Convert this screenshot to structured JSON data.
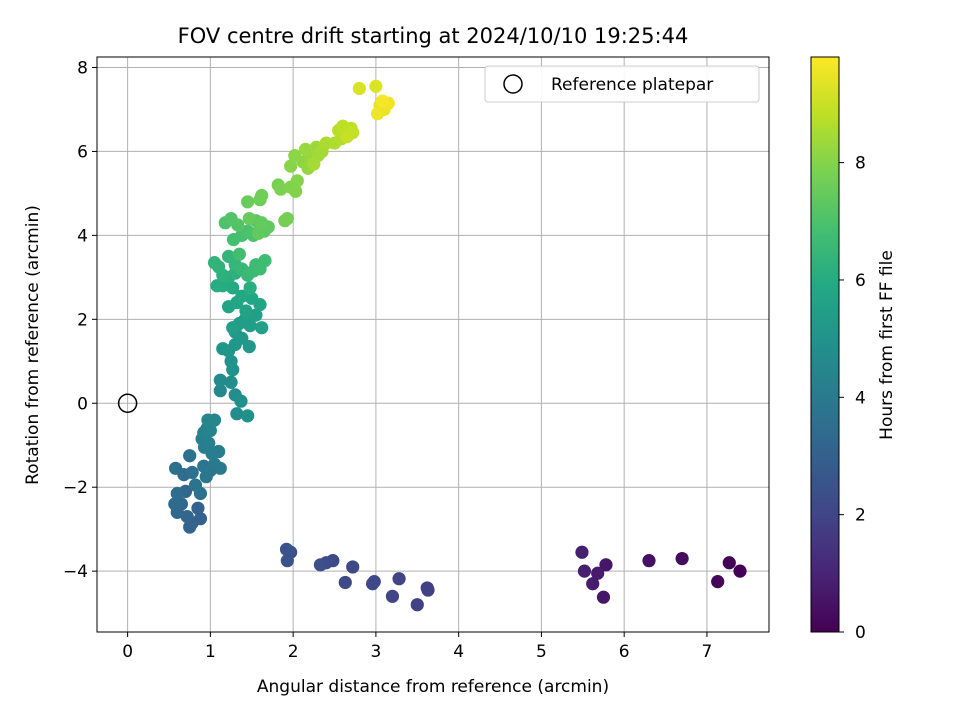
{
  "chart_data": {
    "type": "scatter",
    "title": "FOV centre drift starting at 2024/10/10 19:25:44",
    "xlabel": "Angular distance from reference (arcmin)",
    "ylabel": "Rotation from reference (arcmin)",
    "xlim": [
      -0.37,
      7.75
    ],
    "ylim": [
      -5.45,
      8.25
    ],
    "xticks": [
      0,
      1,
      2,
      3,
      4,
      5,
      6,
      7
    ],
    "yticks": [
      -4,
      -2,
      0,
      2,
      4,
      6,
      8
    ],
    "grid": true,
    "legend": {
      "location": "top-right",
      "entries": [
        "Reference platepar"
      ]
    },
    "reference_point": {
      "x": 0,
      "y": 0,
      "label": "Reference platepar",
      "marker": "open-circle"
    },
    "colorbar": {
      "label": "Hours from first FF file",
      "colormap": "viridis",
      "range": [
        0,
        9.8
      ],
      "ticks": [
        0,
        2,
        4,
        6,
        8
      ]
    },
    "series": [
      {
        "points": [
          [
            7.4,
            -4.0,
            0.05
          ],
          [
            7.27,
            -3.8,
            0.1
          ],
          [
            7.13,
            -4.25,
            0.15
          ],
          [
            6.7,
            -3.7,
            0.3
          ],
          [
            6.3,
            -3.75,
            0.45
          ],
          [
            5.78,
            -3.85,
            0.6
          ],
          [
            5.75,
            -4.62,
            0.65
          ],
          [
            5.68,
            -4.05,
            0.7
          ],
          [
            5.62,
            -4.3,
            0.75
          ],
          [
            5.52,
            -4.0,
            0.8
          ],
          [
            5.49,
            -3.55,
            0.85
          ],
          [
            3.63,
            -4.45,
            1.8
          ],
          [
            3.62,
            -4.4,
            1.85
          ],
          [
            3.5,
            -4.8,
            1.9
          ],
          [
            3.28,
            -4.18,
            1.95
          ],
          [
            3.2,
            -4.6,
            2.0
          ],
          [
            2.98,
            -4.25,
            2.05
          ],
          [
            2.96,
            -4.3,
            2.1
          ],
          [
            2.72,
            -3.9,
            2.15
          ],
          [
            2.63,
            -4.27,
            2.2
          ],
          [
            2.48,
            -3.75,
            2.25
          ],
          [
            2.4,
            -3.8,
            2.3
          ],
          [
            2.33,
            -3.85,
            2.35
          ],
          [
            1.97,
            -3.55,
            2.4
          ],
          [
            1.93,
            -3.75,
            2.45
          ],
          [
            1.92,
            -3.48,
            2.5
          ],
          [
            0.88,
            -2.75,
            3.0
          ],
          [
            0.85,
            -2.5,
            3.05
          ],
          [
            0.78,
            -2.85,
            3.1
          ],
          [
            0.75,
            -2.95,
            3.15
          ],
          [
            0.72,
            -2.7,
            3.2
          ],
          [
            0.7,
            -2.1,
            3.25
          ],
          [
            0.65,
            -2.4,
            3.3
          ],
          [
            0.6,
            -2.6,
            3.35
          ],
          [
            0.57,
            -2.4,
            3.4
          ],
          [
            0.6,
            -2.15,
            3.45
          ],
          [
            0.68,
            -1.7,
            3.5
          ],
          [
            0.58,
            -1.55,
            3.55
          ],
          [
            0.78,
            -1.65,
            3.6
          ],
          [
            0.75,
            -1.25,
            3.65
          ],
          [
            0.88,
            -2.15,
            3.7
          ],
          [
            0.82,
            -1.95,
            3.75
          ],
          [
            0.92,
            -1.5,
            3.8
          ],
          [
            0.95,
            -1.75,
            3.85
          ],
          [
            1.0,
            -1.6,
            3.9
          ],
          [
            1.05,
            -1.45,
            3.95
          ],
          [
            1.12,
            -1.55,
            4.0
          ],
          [
            1.1,
            -1.15,
            4.05
          ],
          [
            1.02,
            -1.2,
            4.1
          ],
          [
            0.93,
            -1.05,
            4.15
          ],
          [
            0.9,
            -0.85,
            4.2
          ],
          [
            0.98,
            -0.95,
            4.25
          ],
          [
            0.92,
            -0.7,
            4.3
          ],
          [
            0.96,
            -0.6,
            4.35
          ],
          [
            1.0,
            -0.65,
            4.4
          ],
          [
            0.97,
            -0.4,
            4.45
          ],
          [
            1.05,
            -0.4,
            4.5
          ],
          [
            1.12,
            0.3,
            4.6
          ],
          [
            1.12,
            0.55,
            4.65
          ],
          [
            1.25,
            0.5,
            4.7
          ],
          [
            1.3,
            0.2,
            4.75
          ],
          [
            1.32,
            -0.25,
            4.8
          ],
          [
            1.37,
            0.05,
            4.85
          ],
          [
            1.45,
            -0.3,
            4.9
          ],
          [
            1.27,
            0.8,
            4.95
          ],
          [
            1.25,
            1.0,
            5.0
          ],
          [
            1.15,
            1.3,
            5.05
          ],
          [
            1.22,
            1.25,
            5.1
          ],
          [
            1.3,
            1.4,
            5.15
          ],
          [
            1.38,
            1.55,
            5.2
          ],
          [
            1.47,
            1.35,
            5.25
          ],
          [
            1.3,
            1.7,
            5.3
          ],
          [
            1.35,
            1.9,
            5.35
          ],
          [
            1.42,
            2.0,
            5.4
          ],
          [
            1.48,
            1.85,
            5.45
          ],
          [
            1.27,
            1.8,
            5.5
          ],
          [
            1.55,
            2.1,
            5.55
          ],
          [
            1.62,
            1.8,
            5.6
          ],
          [
            1.43,
            2.2,
            5.65
          ],
          [
            1.22,
            2.3,
            5.7
          ],
          [
            1.32,
            2.4,
            5.75
          ],
          [
            1.6,
            2.35,
            5.8
          ],
          [
            1.5,
            2.5,
            5.85
          ],
          [
            1.38,
            2.55,
            5.9
          ],
          [
            1.27,
            2.75,
            5.95
          ],
          [
            1.15,
            2.8,
            6.0
          ],
          [
            1.08,
            2.8,
            6.05
          ],
          [
            1.48,
            2.75,
            6.1
          ],
          [
            1.22,
            3.0,
            6.15
          ],
          [
            1.3,
            3.1,
            6.2
          ],
          [
            1.15,
            3.05,
            6.25
          ],
          [
            1.1,
            3.25,
            6.3
          ],
          [
            1.05,
            3.35,
            6.35
          ],
          [
            1.22,
            3.5,
            6.4
          ],
          [
            1.3,
            3.3,
            6.45
          ],
          [
            1.38,
            3.2,
            6.5
          ],
          [
            1.45,
            3.05,
            6.55
          ],
          [
            1.52,
            3.15,
            6.6
          ],
          [
            1.55,
            3.3,
            6.65
          ],
          [
            1.6,
            3.2,
            6.7
          ],
          [
            1.66,
            3.4,
            6.75
          ],
          [
            1.35,
            3.55,
            6.8
          ],
          [
            1.28,
            3.9,
            6.85
          ],
          [
            1.38,
            4.0,
            6.9
          ],
          [
            1.45,
            4.1,
            6.95
          ],
          [
            1.52,
            4.0,
            7.0
          ],
          [
            1.18,
            4.3,
            7.05
          ],
          [
            1.25,
            4.4,
            7.1
          ],
          [
            1.33,
            4.25,
            7.15
          ],
          [
            1.55,
            4.35,
            7.2
          ],
          [
            1.6,
            4.2,
            7.25
          ],
          [
            1.65,
            4.1,
            7.3
          ],
          [
            1.7,
            4.2,
            7.35
          ],
          [
            1.58,
            4.05,
            7.4
          ],
          [
            1.62,
            4.3,
            7.45
          ],
          [
            1.47,
            4.4,
            7.5
          ],
          [
            1.45,
            4.8,
            7.55
          ],
          [
            1.6,
            4.85,
            7.6
          ],
          [
            1.62,
            4.95,
            7.65
          ],
          [
            1.9,
            4.35,
            7.7
          ],
          [
            1.93,
            4.4,
            7.75
          ],
          [
            1.82,
            5.2,
            7.8
          ],
          [
            1.85,
            5.1,
            7.85
          ],
          [
            1.97,
            5.15,
            7.9
          ],
          [
            2.03,
            5.05,
            7.95
          ],
          [
            2.05,
            5.3,
            8.0
          ],
          [
            1.97,
            5.65,
            8.05
          ],
          [
            2.02,
            5.9,
            8.1
          ],
          [
            2.12,
            5.75,
            8.15
          ],
          [
            2.18,
            5.6,
            8.2
          ],
          [
            2.22,
            5.85,
            8.25
          ],
          [
            2.15,
            6.05,
            8.3
          ],
          [
            2.28,
            6.1,
            8.35
          ],
          [
            2.3,
            5.9,
            8.4
          ],
          [
            2.35,
            6.0,
            8.45
          ],
          [
            2.25,
            5.7,
            8.5
          ],
          [
            2.4,
            6.2,
            8.55
          ],
          [
            2.5,
            6.2,
            8.6
          ],
          [
            2.58,
            6.3,
            8.65
          ],
          [
            2.62,
            6.4,
            8.7
          ],
          [
            2.55,
            6.5,
            8.75
          ],
          [
            2.6,
            6.6,
            8.8
          ],
          [
            2.7,
            6.55,
            8.85
          ],
          [
            2.72,
            6.45,
            8.9
          ],
          [
            2.65,
            6.35,
            8.95
          ],
          [
            2.8,
            7.5,
            9.25
          ],
          [
            3.0,
            7.55,
            9.3
          ],
          [
            3.05,
            7.1,
            9.4
          ],
          [
            3.1,
            7.0,
            9.5
          ],
          [
            3.02,
            6.9,
            9.55
          ],
          [
            3.15,
            7.15,
            9.6
          ],
          [
            3.08,
            7.2,
            9.7
          ]
        ]
      }
    ]
  }
}
